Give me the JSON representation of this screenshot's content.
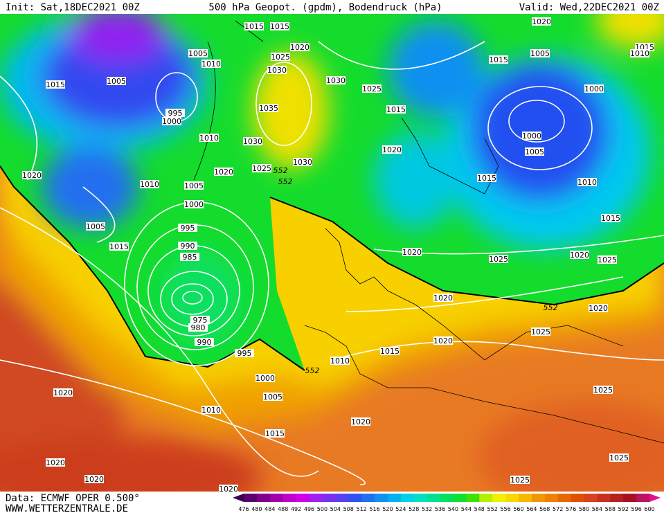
{
  "header": {
    "left": "Init: Sat,18DEC2021 00Z",
    "center": "500 hPa Geopot. (gpdm), Bodendruck (hPa)",
    "right": "Valid: Wed,22DEC2021 00Z"
  },
  "footer": {
    "data": "Data: ECMWF OPER 0.500°",
    "site": "WWW.WETTERZENTRALE.DE"
  },
  "isobar_labels": [
    1015,
    1015,
    1020,
    1025,
    1005,
    1010,
    1005,
    1015,
    995,
    1000,
    1030,
    1035,
    1030,
    1025,
    1030,
    1010,
    1020,
    1025,
    1030,
    1020,
    1015,
    1015,
    1005,
    1000,
    1000,
    1005,
    1015,
    1010,
    1010,
    1005,
    1000,
    995,
    990,
    985,
    975,
    980,
    990,
    995,
    1000,
    1005,
    1010,
    1015,
    1020,
    1020,
    1020,
    1010,
    1015,
    1020,
    1020,
    1020,
    1025,
    1025,
    1025,
    1025,
    1020,
    1025,
    1020,
    1025,
    1015,
    1020,
    1020,
    1015,
    1010,
    1020,
    1005,
    1015,
    1020
  ],
  "height_labels": [
    552,
    552,
    552,
    552
  ],
  "colorbar": {
    "labels": [
      476,
      480,
      484,
      488,
      492,
      496,
      500,
      504,
      508,
      512,
      516,
      520,
      524,
      528,
      532,
      536,
      540,
      544,
      548,
      552,
      556,
      560,
      564,
      568,
      572,
      576,
      580,
      584,
      588,
      592,
      596,
      600
    ],
    "colors": [
      "#3c0050",
      "#5a0070",
      "#80008c",
      "#a000a8",
      "#c000c8",
      "#d000e8",
      "#a020f0",
      "#7a30f0",
      "#5a40f0",
      "#3050f0",
      "#2070f0",
      "#1090f0",
      "#00b0f0",
      "#00d0e8",
      "#00e0c0",
      "#00e090",
      "#00e060",
      "#10e030",
      "#40e000",
      "#b0f000",
      "#f0f000",
      "#f8d800",
      "#f8b800",
      "#f09800",
      "#f08000",
      "#e86800",
      "#e05000",
      "#d84020",
      "#c83020",
      "#b82020",
      "#a81020",
      "#c01060",
      "#e01090"
    ]
  }
}
